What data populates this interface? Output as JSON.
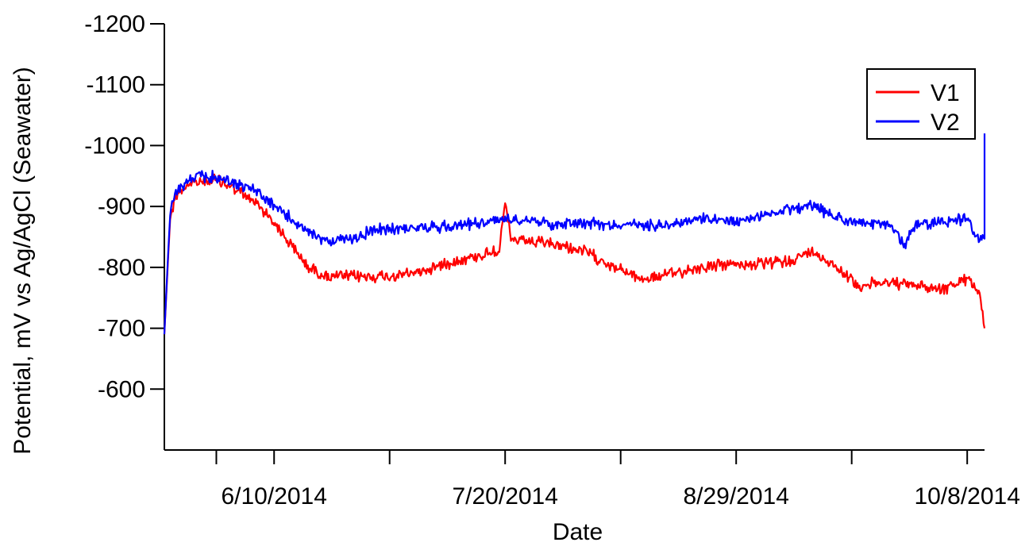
{
  "chart_data": {
    "type": "line",
    "title": "",
    "xlabel": "Date",
    "ylabel": "Potential, mV vs Ag/AgCl (Seawater)",
    "x_axis_type": "date",
    "xlim": [
      "2014-05-22",
      "2014-10-11"
    ],
    "ylim": [
      -500,
      -1200
    ],
    "y_axis_reversed": true,
    "yticks": [
      -600,
      -700,
      -800,
      -900,
      -1000,
      -1100,
      -1200
    ],
    "yticklabels": [
      "-600",
      "-700",
      "-800",
      "-900",
      "-1000",
      "-1100",
      "-1200"
    ],
    "xticks": [
      "2014-05-31",
      "2014-06-10",
      "2014-06-30",
      "2014-07-20",
      "2014-08-09",
      "2014-08-29",
      "2014-09-18",
      "2014-10-08"
    ],
    "xticklabels": [
      "",
      "6/10/2014",
      "",
      "7/20/2014",
      "",
      "8/29/2014",
      "",
      "10/8/2014"
    ],
    "grid": false,
    "legend_position": "top-right",
    "series": [
      {
        "name": "V1",
        "color": "#ff0000",
        "x": [
          "2014-05-22",
          "2014-05-23",
          "2014-05-24",
          "2014-05-26",
          "2014-05-28",
          "2014-05-31",
          "2014-06-03",
          "2014-06-07",
          "2014-06-10",
          "2014-06-13",
          "2014-06-16",
          "2014-06-19",
          "2014-06-22",
          "2014-06-26",
          "2014-07-01",
          "2014-07-06",
          "2014-07-11",
          "2014-07-16",
          "2014-07-19",
          "2014-07-20",
          "2014-07-21",
          "2014-07-26",
          "2014-07-30",
          "2014-08-03",
          "2014-08-08",
          "2014-08-13",
          "2014-08-18",
          "2014-08-23",
          "2014-08-28",
          "2014-09-02",
          "2014-09-07",
          "2014-09-11",
          "2014-09-15",
          "2014-09-19",
          "2014-09-24",
          "2014-09-29",
          "2014-10-04",
          "2014-10-08",
          "2014-10-10",
          "2014-10-11"
        ],
        "y": [
          -690,
          -880,
          -920,
          -935,
          -940,
          -945,
          -930,
          -905,
          -875,
          -835,
          -800,
          -785,
          -785,
          -785,
          -785,
          -795,
          -810,
          -820,
          -830,
          -905,
          -845,
          -840,
          -835,
          -825,
          -800,
          -780,
          -790,
          -800,
          -805,
          -805,
          -810,
          -825,
          -805,
          -770,
          -775,
          -770,
          -765,
          -780,
          -765,
          -700
        ]
      },
      {
        "name": "V2",
        "color": "#0000ff",
        "x": [
          "2014-05-22",
          "2014-05-23",
          "2014-05-24",
          "2014-05-26",
          "2014-05-28",
          "2014-05-31",
          "2014-06-03",
          "2014-06-07",
          "2014-06-10",
          "2014-06-13",
          "2014-06-16",
          "2014-06-19",
          "2014-06-23",
          "2014-06-27",
          "2014-07-02",
          "2014-07-07",
          "2014-07-12",
          "2014-07-17",
          "2014-07-20",
          "2014-07-24",
          "2014-07-28",
          "2014-08-02",
          "2014-08-07",
          "2014-08-12",
          "2014-08-17",
          "2014-08-22",
          "2014-08-27",
          "2014-09-01",
          "2014-09-06",
          "2014-09-11",
          "2014-09-16",
          "2014-09-21",
          "2014-09-25",
          "2014-09-27",
          "2014-09-29",
          "2014-10-04",
          "2014-10-08",
          "2014-10-10",
          "2014-10-11",
          "2014-10-11"
        ],
        "y": [
          -690,
          -890,
          -925,
          -940,
          -950,
          -948,
          -940,
          -925,
          -900,
          -880,
          -855,
          -845,
          -845,
          -860,
          -865,
          -865,
          -870,
          -875,
          -880,
          -880,
          -870,
          -875,
          -870,
          -870,
          -870,
          -880,
          -875,
          -880,
          -895,
          -900,
          -880,
          -870,
          -870,
          -835,
          -870,
          -875,
          -880,
          -845,
          -855,
          -1020
        ]
      }
    ]
  }
}
